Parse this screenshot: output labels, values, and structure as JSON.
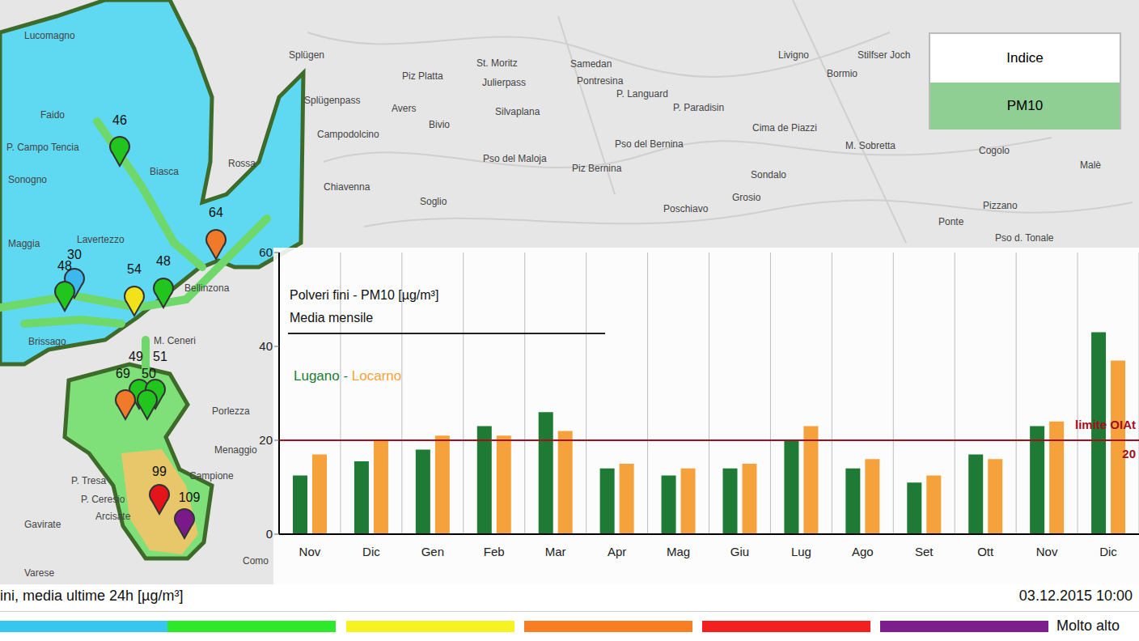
{
  "chart_data": {
    "type": "bar",
    "title": "Polveri fini - PM10 [µg/m³]",
    "subtitle": "Media mensile",
    "categories": [
      "Nov",
      "Dic",
      "Gen",
      "Feb",
      "Mar",
      "Apr",
      "Mag",
      "Giu",
      "Lug",
      "Ago",
      "Set",
      "Ott",
      "Nov",
      "Dic"
    ],
    "series": [
      {
        "name": "Lugano",
        "color": "#1f7a35",
        "values": [
          12.5,
          15.5,
          18,
          23,
          26,
          14,
          12.5,
          14,
          20,
          14,
          11,
          17,
          23,
          43
        ]
      },
      {
        "name": "Locarno",
        "color": "#f5a23c",
        "values": [
          17,
          20,
          21,
          21,
          22,
          15,
          14,
          15,
          23,
          16,
          12.5,
          16,
          24,
          37
        ]
      }
    ],
    "ylim": [
      0,
      60
    ],
    "yticks": [
      0,
      20,
      40,
      60
    ],
    "grid": true,
    "reference_line": {
      "value": 20,
      "label": "limite OIAt",
      "color": "#a3101c"
    }
  },
  "map": {
    "places": [
      "Splügen",
      "Splügenpass",
      "Piz Platta",
      "St. Moritz",
      "Julierpass",
      "Samedan",
      "Pontresina",
      "P. Languard",
      "Livigno",
      "Bormio",
      "Stilfser Joch",
      "Avers",
      "Bivio",
      "Silvaplana",
      "Campodolcino",
      "Pso del Maloja",
      "Piz Bernina",
      "Pso del Bernina",
      "P. Paradisin",
      "Cima de Piazzi",
      "M. Sobretta",
      "Sondalo",
      "Grosio",
      "Poschiavo",
      "Chiavenna",
      "Soglio",
      "Cogolo",
      "Malè",
      "Pizzano",
      "Ponte",
      "Pso d. Tonale",
      "Lucomagno",
      "Faido",
      "P. Campo Tencia",
      "Sonogno",
      "Biasca",
      "Rossa",
      "Maggia",
      "Lavertezzo",
      "Bellinzona",
      "Brissago",
      "M. Ceneri",
      "Porlezza",
      "Menaggio",
      "Campione",
      "P. Tresa",
      "P. Ceresio",
      "Arcisate",
      "Gavirate",
      "Varese",
      "Como"
    ],
    "stations": [
      {
        "value": 46,
        "color": "#22c41e"
      },
      {
        "value": 64,
        "color": "#f07a2a"
      },
      {
        "value": 30,
        "color": "#3bb8ee"
      },
      {
        "value": 48,
        "color": "#22c41e"
      },
      {
        "value": 54,
        "color": "#f2e21a"
      },
      {
        "value": 48,
        "color": "#22c41e"
      },
      {
        "value": 49,
        "color": "#22c41e"
      },
      {
        "value": 51,
        "color": "#22c41e"
      },
      {
        "value": 69,
        "color": "#f07a2a"
      },
      {
        "value": 50,
        "color": "#22c41e"
      },
      {
        "value": 99,
        "color": "#e3141a"
      },
      {
        "value": 109,
        "color": "#7a1a8a"
      }
    ]
  },
  "legend_box": {
    "title": "Indice",
    "value": "PM10"
  },
  "footer": {
    "caption": "ini, media ultime 24h [µg/m³]",
    "timestamp": "03.12.2015 10:00",
    "scale_colors": [
      "#36c6f0",
      "#2ee82a",
      "#f7f222",
      "#f77e22",
      "#f2201e",
      "#7e1e8e"
    ],
    "scale_label": "Molto alto"
  }
}
